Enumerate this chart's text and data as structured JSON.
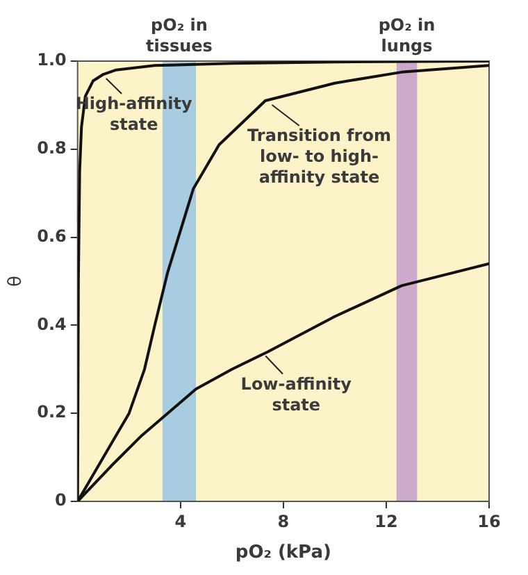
{
  "chart_data": {
    "type": "line",
    "xlabel": "pO₂ (kPa)",
    "ylabel": "θ",
    "xlim": [
      0,
      16
    ],
    "xticks": [
      4,
      8,
      12,
      16
    ],
    "ylim": [
      0,
      1
    ],
    "yticks": [
      0,
      {
        "value": 0.2,
        "label": "0.2"
      },
      {
        "value": 0.4,
        "label": "0.4"
      },
      {
        "value": 0.6,
        "label": "0.6"
      },
      {
        "value": 0.8,
        "label": "0.8"
      },
      {
        "value": 1,
        "label": "1.0"
      }
    ],
    "legend": false,
    "marker": "none",
    "line_style": "solid",
    "series": [
      {
        "color": "#111111",
        "x": [
          0,
          0.03,
          0.08,
          0.15,
          0.3,
          0.6,
          1.0,
          1.5,
          3,
          6,
          10,
          16
        ],
        "values": [
          0,
          0.5,
          0.75,
          0.85,
          0.92,
          0.955,
          0.97,
          0.98,
          0.99,
          0.995,
          0.998,
          1
        ]
      },
      {
        "color": "#111111",
        "x": [
          0,
          1.15,
          2.0,
          2.6,
          3.0,
          3.5,
          4.5,
          5.5,
          7.3,
          10,
          12.6,
          16
        ],
        "values": [
          0,
          0.115,
          0.2,
          0.3,
          0.4,
          0.52,
          0.71,
          0.81,
          0.91,
          0.95,
          0.975,
          0.99
        ]
      },
      {
        "color": "#111111",
        "x": [
          0,
          1.3,
          2.5,
          3.5,
          4.6,
          6,
          7.4,
          10,
          12.6,
          16
        ],
        "values": [
          0,
          0.08,
          0.15,
          0.2,
          0.255,
          0.3,
          0.34,
          0.42,
          0.49,
          0.54
        ]
      }
    ],
    "bands": [
      {
        "axis": "x",
        "from": 3.3,
        "to": 4.6,
        "label": "pO₂ in\ntissues",
        "color": "#a9cde0"
      },
      {
        "axis": "x",
        "from": 12.4,
        "to": 13.2,
        "label": "pO₂ in\nlungs",
        "color": "#cdaacb"
      }
    ],
    "annotations": [
      {
        "text": "High-affinity\nstate",
        "x": 1.0,
        "y": 0.97
      },
      {
        "text": "Transition from\nlow- to high-\naffinity state",
        "x": 7.45,
        "y": 0.91
      },
      {
        "text": "Low-affinity\nstate",
        "x": 7.2,
        "y": 0.34
      }
    ]
  }
}
